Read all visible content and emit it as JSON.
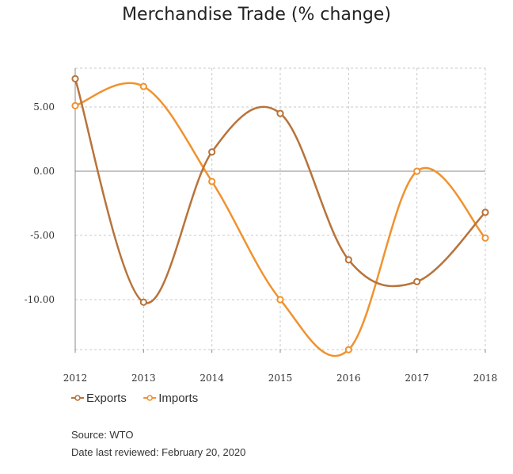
{
  "chart_data": {
    "type": "line",
    "title": "Merchandise Trade (% change)",
    "x": [
      "2012",
      "2013",
      "2014",
      "2015",
      "2016",
      "2017",
      "2018"
    ],
    "yticks": [
      "5.00",
      "0.00",
      "-5.00",
      "-10.00"
    ],
    "ytick_values": [
      5,
      0,
      -5,
      -10
    ],
    "ylim": [
      -14.2,
      7.8
    ],
    "grid": true,
    "legend_position": "bottom-left",
    "series": [
      {
        "name": "Exports",
        "color": "#b8733a",
        "values": [
          7.2,
          -10.2,
          1.5,
          4.5,
          -6.9,
          -8.6,
          -3.2
        ]
      },
      {
        "name": "Imports",
        "color": "#f0922f",
        "values": [
          5.1,
          6.6,
          -0.8,
          -10.0,
          -13.9,
          0.0,
          -5.2
        ]
      }
    ]
  },
  "footer": {
    "source": "Source: WTO",
    "reviewed": "Date last reviewed: February 20, 2020"
  }
}
